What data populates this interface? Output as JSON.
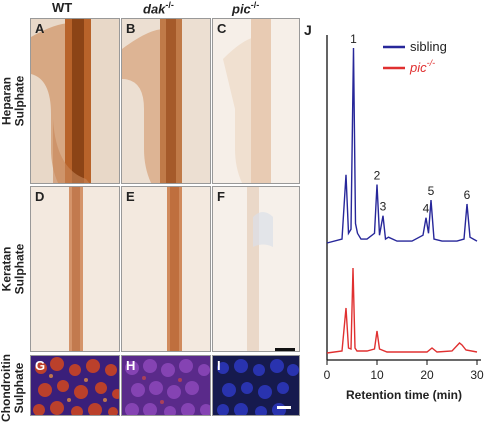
{
  "column_headers": [
    {
      "text": "WT",
      "sup": ""
    },
    {
      "text": "dak",
      "sup": "-/-"
    },
    {
      "text": "pic",
      "sup": "-/-"
    }
  ],
  "row_labels": [
    "Heparan\nSulphate",
    "Keratan\nSulphate",
    "Chondroitin\nSulphate"
  ],
  "panel_letters": [
    "A",
    "B",
    "C",
    "D",
    "E",
    "F",
    "G",
    "H",
    "I"
  ],
  "colors": {
    "sibling": "#27279a",
    "pic": "#e03030",
    "stain_strong": "#b0642a",
    "stain_light": "#f1e1d2",
    "nuclei_blue": "#2b35b5",
    "chondroitin_red": "#d2461e"
  },
  "chart_data": {
    "type": "line",
    "panel_label": "J",
    "xlabel": "Retention time (min)",
    "xlim": [
      0,
      30
    ],
    "xticks": [
      0,
      10,
      20,
      30
    ],
    "legend_position": "top-right",
    "series": [
      {
        "name": "sibling",
        "name_sup": "",
        "color": "#27279a",
        "x": [
          0,
          3.0,
          3.8,
          4.3,
          4.8,
          5.3,
          5.7,
          6.1,
          6.8,
          8,
          9.5,
          10.0,
          10.5,
          11.2,
          11.7,
          12.3,
          14,
          17,
          19.2,
          19.8,
          20.3,
          20.8,
          21.4,
          23,
          26,
          27.4,
          28.0,
          28.6,
          30
        ],
        "y": [
          0.0,
          0.02,
          0.35,
          0.05,
          0.07,
          1.0,
          0.1,
          0.05,
          0.02,
          0.02,
          0.05,
          0.3,
          0.04,
          0.14,
          0.02,
          0.03,
          0.01,
          0.01,
          0.04,
          0.13,
          0.05,
          0.22,
          0.02,
          0.01,
          0.01,
          0.02,
          0.2,
          0.03,
          0.01
        ]
      },
      {
        "name": "pic",
        "name_sup": "-/-",
        "color": "#e03030",
        "x": [
          0,
          3.0,
          3.8,
          4.3,
          4.8,
          5.2,
          5.6,
          6.0,
          6.8,
          8,
          9.5,
          10.0,
          10.5,
          12,
          16,
          20,
          21.0,
          22,
          25,
          26.5,
          27.0,
          27.8,
          30
        ],
        "y": [
          0.0,
          0.02,
          0.45,
          0.05,
          0.04,
          0.85,
          0.05,
          0.02,
          0.02,
          0.02,
          0.04,
          0.22,
          0.04,
          0.01,
          0.01,
          0.01,
          0.05,
          0.01,
          0.02,
          0.1,
          0.08,
          0.03,
          0.01
        ]
      }
    ],
    "peak_labels": [
      {
        "text": "1",
        "x": 5.3
      },
      {
        "text": "2",
        "x": 10.0
      },
      {
        "text": "3",
        "x": 11.2
      },
      {
        "text": "4",
        "x": 19.8
      },
      {
        "text": "5",
        "x": 20.8
      },
      {
        "text": "6",
        "x": 28.0
      }
    ]
  }
}
